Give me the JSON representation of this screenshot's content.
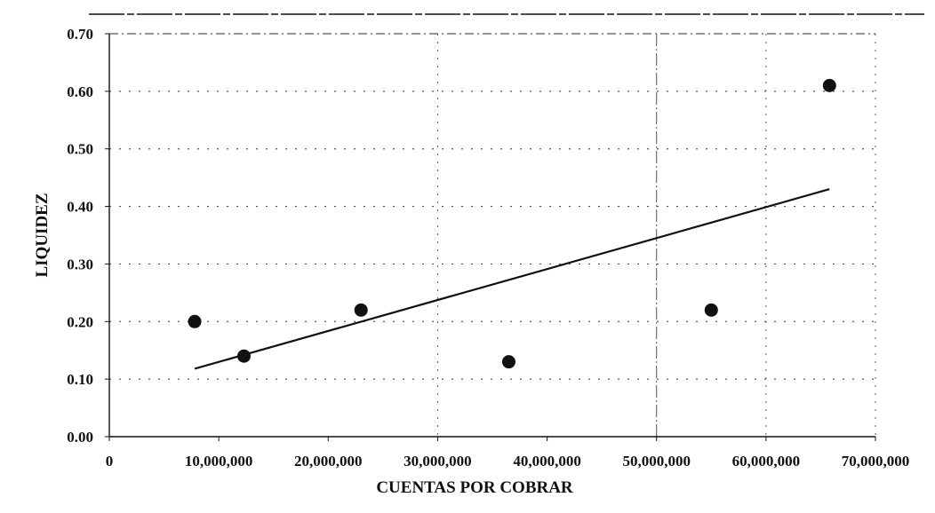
{
  "chart_data": {
    "type": "scatter",
    "title": "",
    "xlabel": "CUENTAS POR COBRAR",
    "ylabel": "LIQUIDEZ",
    "xlim": [
      0,
      70000000
    ],
    "ylim": [
      0,
      0.7
    ],
    "x_ticks": [
      {
        "value": 0,
        "label": "0"
      },
      {
        "value": 10000000,
        "label": "10,000,000"
      },
      {
        "value": 20000000,
        "label": "20,000,000"
      },
      {
        "value": 30000000,
        "label": "30,000,000"
      },
      {
        "value": 40000000,
        "label": "40,000,000"
      },
      {
        "value": 50000000,
        "label": "50,000,000"
      },
      {
        "value": 60000000,
        "label": "60,000,000"
      },
      {
        "value": 70000000,
        "label": "70,000,000"
      }
    ],
    "y_ticks": [
      {
        "value": 0,
        "label": "0.00"
      },
      {
        "value": 0.1,
        "label": "0.10"
      },
      {
        "value": 0.2,
        "label": "0.20"
      },
      {
        "value": 0.3,
        "label": "0.30"
      },
      {
        "value": 0.4,
        "label": "0.40"
      },
      {
        "value": 0.5,
        "label": "0.50"
      },
      {
        "value": 0.6,
        "label": "0.60"
      },
      {
        "value": 0.7,
        "label": "0.70"
      }
    ],
    "grid": true,
    "legend": "none",
    "series": [
      {
        "points": [
          {
            "x": 7800000,
            "y": 0.2
          },
          {
            "x": 12300000,
            "y": 0.14
          },
          {
            "x": 23000000,
            "y": 0.22
          },
          {
            "x": 36500000,
            "y": 0.13
          },
          {
            "x": 55000000,
            "y": 0.22
          },
          {
            "x": 65800000,
            "y": 0.61
          }
        ]
      }
    ],
    "trendline": {
      "type": "linear",
      "x_start": 7800000,
      "y_start": 0.118,
      "x_end": 65800000,
      "y_end": 0.43
    },
    "colors": {
      "points": "#111111",
      "line": "#111111",
      "grid": "#555555",
      "axis": "#111111"
    }
  }
}
